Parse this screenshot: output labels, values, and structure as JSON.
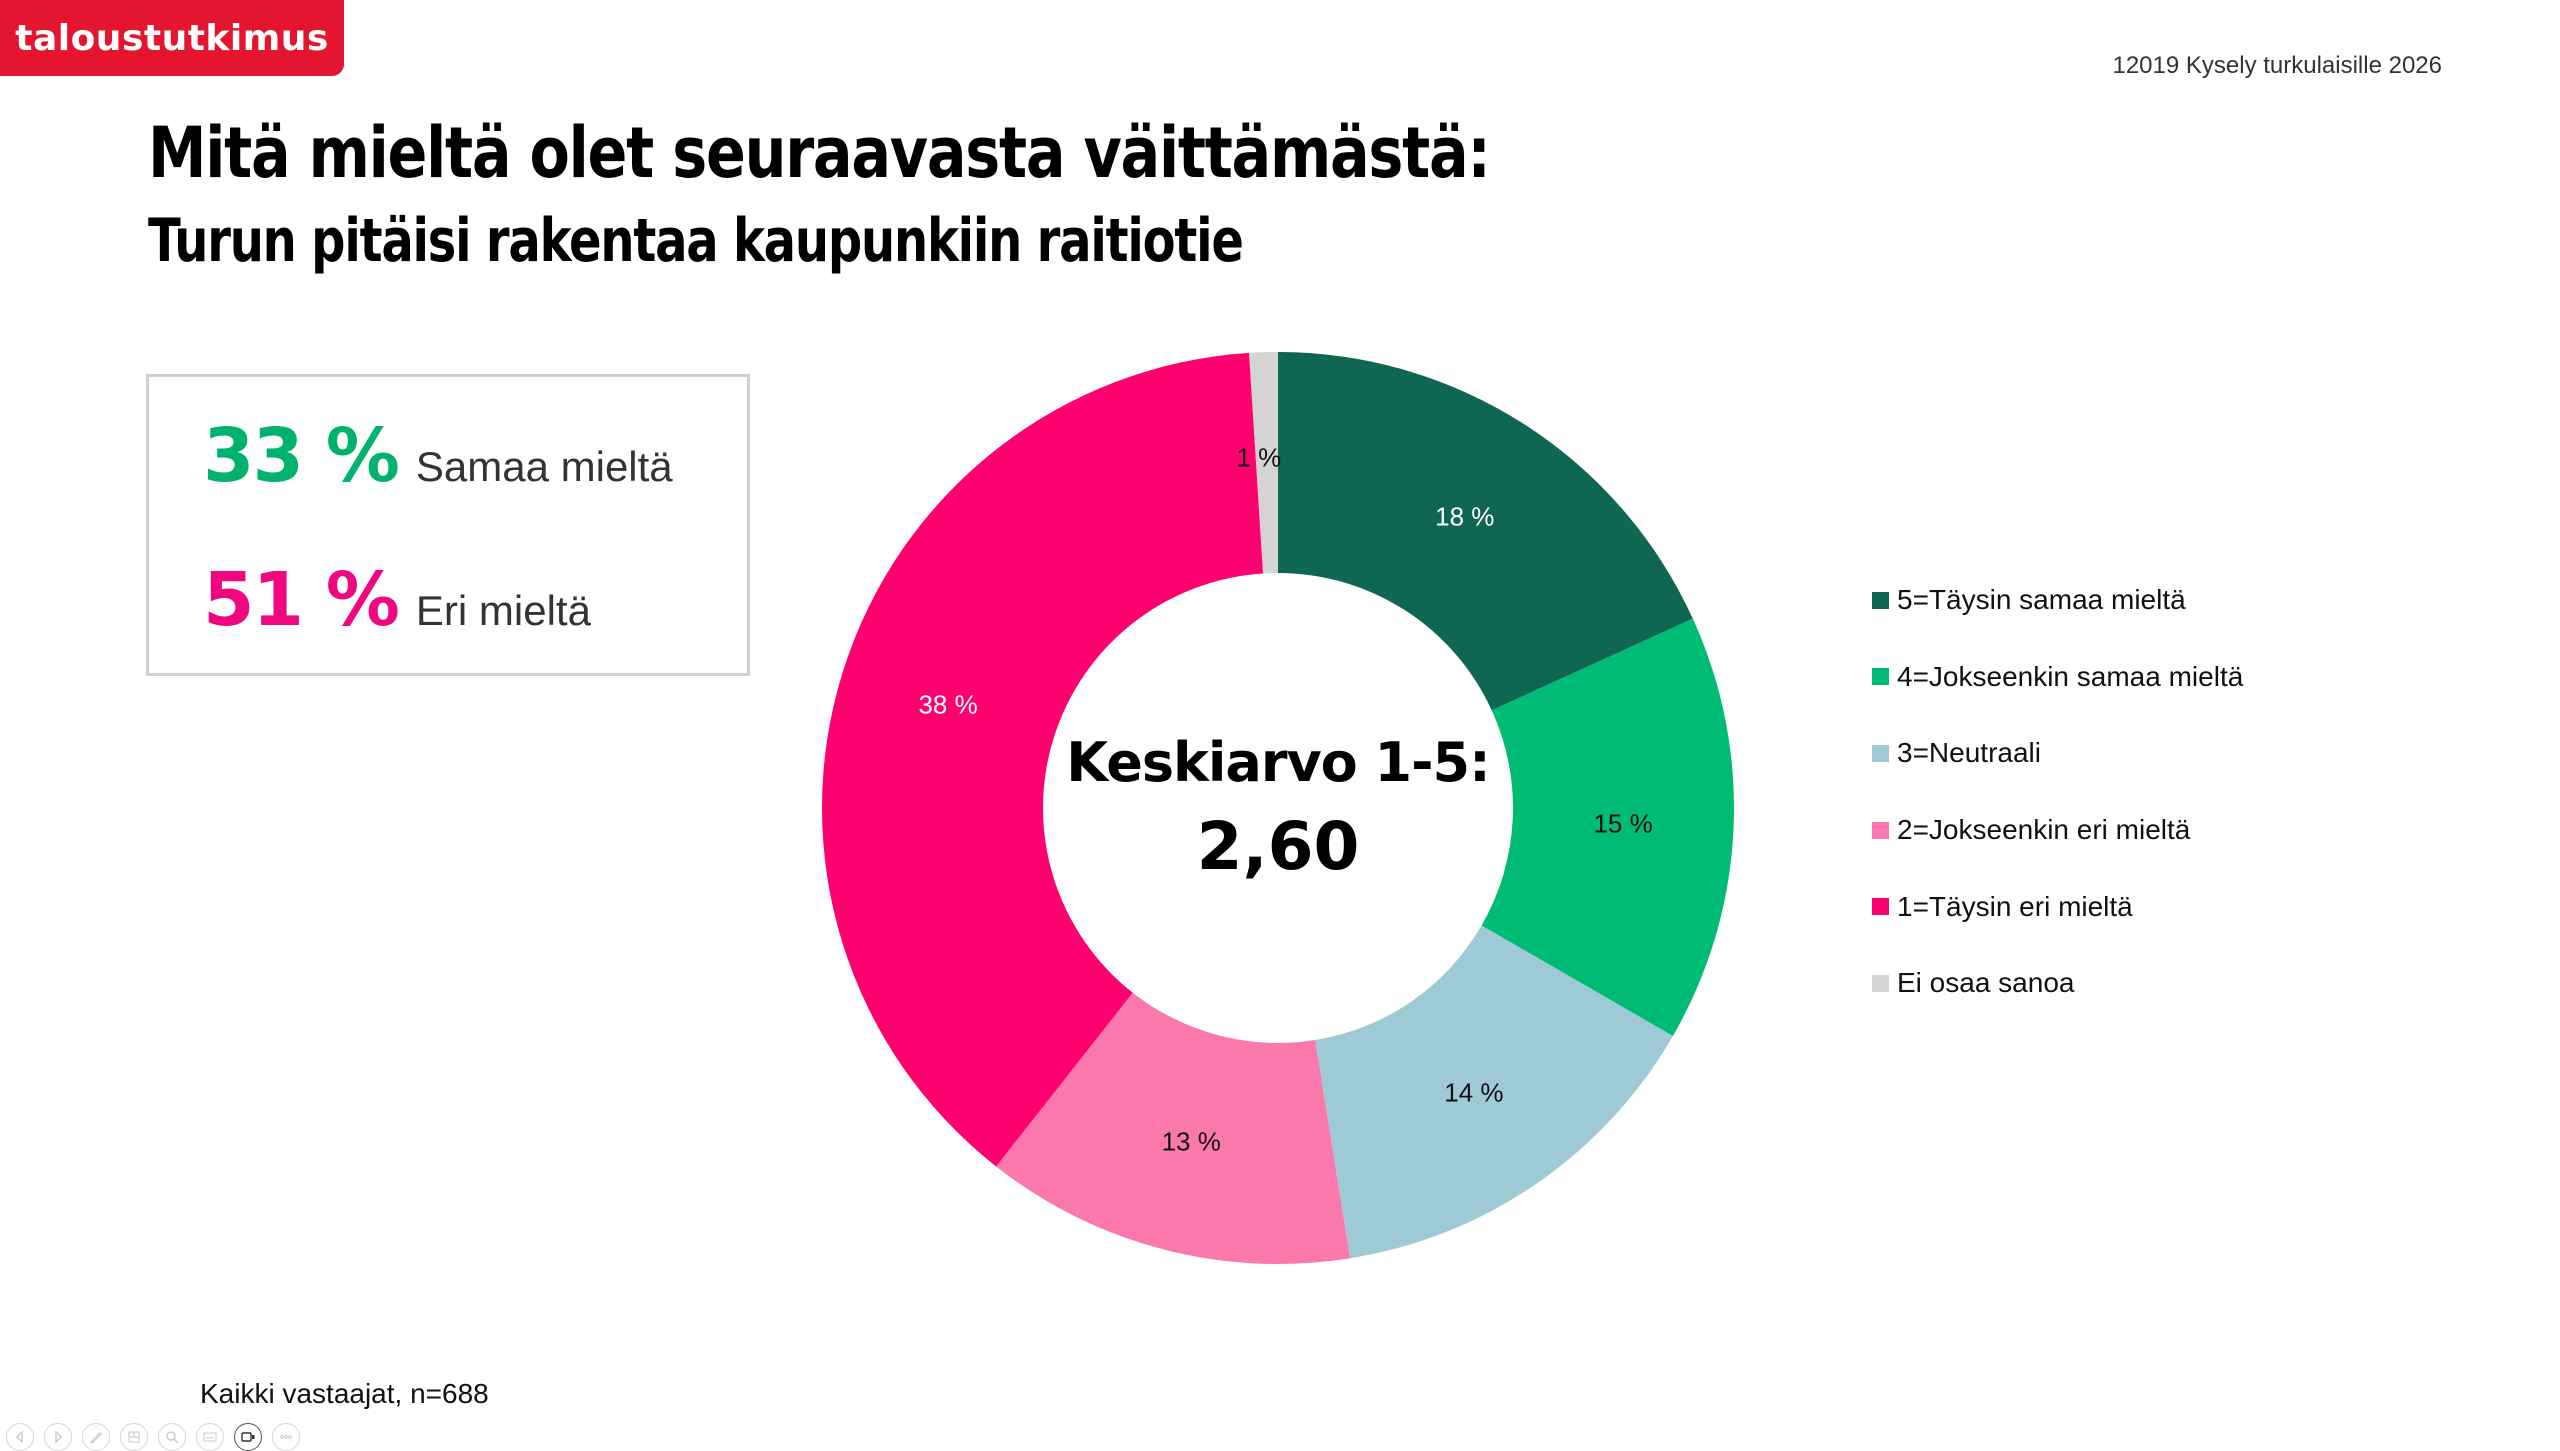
{
  "header": {
    "logo_text": "taloustutkimus",
    "logo_color": "#e3152f",
    "project_label": "12019 Kysely turkulaisille 2026"
  },
  "titles": {
    "question": "Mitä mieltä olet seuraavasta väittämästä:",
    "statement": "Turun pitäisi rakentaa kaupunkiin raitiotie"
  },
  "summary": {
    "agree": {
      "value": "33 %",
      "label": "Samaa mieltä",
      "color": "#00b26e"
    },
    "disagree": {
      "value": "51 %",
      "label": "Eri mieltä",
      "color": "#f0077f"
    }
  },
  "center": {
    "title": "Keskiarvo 1-5:",
    "value": "2,60"
  },
  "footnote": "Kaikki vastaajat, n=688",
  "toolbar": {
    "buttons": [
      {
        "name": "previous-slide-button",
        "icon": "chevron-left"
      },
      {
        "name": "next-slide-button",
        "icon": "chevron-right"
      },
      {
        "name": "pen-tool-button",
        "icon": "pen"
      },
      {
        "name": "see-all-slides-button",
        "icon": "grid"
      },
      {
        "name": "zoom-button",
        "icon": "magnifier"
      },
      {
        "name": "subtitles-button",
        "icon": "subtitles"
      },
      {
        "name": "camera-button",
        "icon": "camera",
        "active": true
      },
      {
        "name": "more-options-button",
        "icon": "ellipsis"
      }
    ]
  },
  "chart_data": {
    "type": "pie",
    "subtype": "donut",
    "title": "Turun pitäisi rakentaa kaupunkiin raitiotie",
    "center_label": "Keskiarvo 1-5: 2,60",
    "legend_position": "right",
    "categories": [
      "5=Täysin samaa mieltä",
      "4=Jokseenkin samaa mieltä",
      "3=Neutraali",
      "2=Jokseenkin eri mieltä",
      "1=Täysin eri mieltä",
      "Ei osaa sanoa"
    ],
    "values": [
      18,
      15,
      14,
      13,
      38,
      1
    ],
    "labels": [
      "18 %",
      "15 %",
      "14 %",
      "13 %",
      "38 %",
      "1 %"
    ],
    "colors": [
      "#0e6653",
      "#00bb74",
      "#9ecad6",
      "#fb78ac",
      "#ff006f",
      "#d4d4d4"
    ],
    "label_colors": [
      "#ffffff",
      "#111111",
      "#111111",
      "#111111",
      "#ffffff",
      "#111111"
    ],
    "start_angle_deg": 0,
    "direction": "clockwise"
  }
}
